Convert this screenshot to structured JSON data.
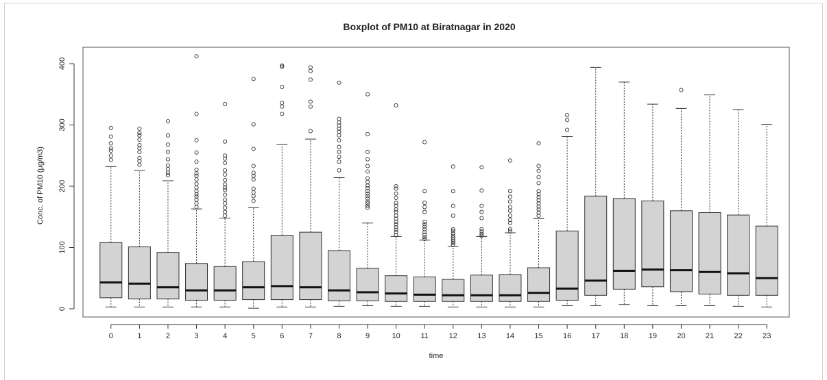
{
  "chart_data": {
    "type": "boxplot",
    "title": "Boxplot of PM10 at Biratnagar in 2020",
    "xlabel": "time",
    "ylabel": "Conc. of PM10 (μg/m3)",
    "ylim": [
      0,
      420
    ],
    "yticks": [
      0,
      100,
      200,
      300,
      400
    ],
    "categories": [
      "0",
      "1",
      "2",
      "3",
      "4",
      "5",
      "6",
      "7",
      "8",
      "9",
      "10",
      "11",
      "12",
      "13",
      "14",
      "15",
      "16",
      "17",
      "18",
      "19",
      "20",
      "21",
      "22",
      "23"
    ],
    "box_color": "#d3d3d3",
    "boxes": [
      {
        "x": "0",
        "whisker_low": 3,
        "q1": 18,
        "median": 43,
        "q3": 108,
        "whisker_high": 232,
        "outliers": [
          243,
          250,
          258,
          262,
          270,
          281,
          295
        ]
      },
      {
        "x": "1",
        "whisker_low": 3,
        "q1": 16,
        "median": 41,
        "q3": 101,
        "whisker_high": 226,
        "outliers": [
          235,
          241,
          246,
          256,
          262,
          267,
          276,
          283,
          287,
          294
        ]
      },
      {
        "x": "2",
        "whisker_low": 3,
        "q1": 16,
        "median": 35,
        "q3": 92,
        "whisker_high": 209,
        "outliers": [
          218,
          222,
          228,
          234,
          244,
          256,
          268,
          283,
          306
        ]
      },
      {
        "x": "3",
        "whisker_low": 3,
        "q1": 14,
        "median": 30,
        "q3": 74,
        "whisker_high": 163,
        "outliers": [
          166,
          172,
          178,
          183,
          187,
          192,
          198,
          204,
          211,
          217,
          221,
          227,
          240,
          255,
          275,
          318,
          412
        ]
      },
      {
        "x": "4",
        "whisker_low": 3,
        "q1": 14,
        "median": 30,
        "q3": 69,
        "whisker_high": 148,
        "outliers": [
          152,
          158,
          165,
          172,
          178,
          186,
          194,
          198,
          203,
          210,
          219,
          226,
          238,
          245,
          250,
          273,
          334
        ]
      },
      {
        "x": "5",
        "whisker_low": 1,
        "q1": 15,
        "median": 35,
        "q3": 77,
        "whisker_high": 165,
        "outliers": [
          176,
          184,
          190,
          196,
          211,
          217,
          222,
          233,
          261,
          301,
          375
        ]
      },
      {
        "x": "6",
        "whisker_low": 3,
        "q1": 15,
        "median": 37,
        "q3": 120,
        "whisker_high": 268,
        "outliers": [
          318,
          330,
          336,
          362,
          395,
          397
        ]
      },
      {
        "x": "7",
        "whisker_low": 3,
        "q1": 15,
        "median": 35,
        "q3": 125,
        "whisker_high": 277,
        "outliers": [
          290,
          330,
          338,
          374,
          388,
          394
        ]
      },
      {
        "x": "8",
        "whisker_low": 4,
        "q1": 13,
        "median": 30,
        "q3": 95,
        "whisker_high": 214,
        "outliers": [
          226,
          240,
          248,
          256,
          264,
          275,
          283,
          289,
          294,
          299,
          304,
          310,
          369
        ]
      },
      {
        "x": "9",
        "whisker_low": 5,
        "q1": 13,
        "median": 27,
        "q3": 66,
        "whisker_high": 140,
        "outliers": [
          165,
          168,
          172,
          175,
          180,
          184,
          188,
          192,
          197,
          201,
          207,
          213,
          224,
          233,
          244,
          256,
          285,
          350
        ]
      },
      {
        "x": "10",
        "whisker_low": 4,
        "q1": 12,
        "median": 25,
        "q3": 54,
        "whisker_high": 118,
        "outliers": [
          120,
          125,
          129,
          133,
          138,
          142,
          147,
          152,
          158,
          162,
          168,
          173,
          181,
          188,
          196,
          200,
          332
        ]
      },
      {
        "x": "11",
        "whisker_low": 4,
        "q1": 12,
        "median": 23,
        "q3": 52,
        "whisker_high": 112,
        "outliers": [
          114,
          117,
          121,
          125,
          130,
          134,
          138,
          142,
          158,
          166,
          173,
          192,
          272
        ]
      },
      {
        "x": "12",
        "whisker_low": 3,
        "q1": 12,
        "median": 22,
        "q3": 48,
        "whisker_high": 102,
        "outliers": [
          104,
          107,
          110,
          113,
          116,
          119,
          123,
          127,
          130,
          152,
          168,
          192,
          232
        ]
      },
      {
        "x": "13",
        "whisker_low": 3,
        "q1": 12,
        "median": 22,
        "q3": 55,
        "whisker_high": 118,
        "outliers": [
          119,
          122,
          126,
          130,
          148,
          158,
          168,
          193,
          231
        ]
      },
      {
        "x": "14",
        "whisker_low": 3,
        "q1": 12,
        "median": 22,
        "q3": 56,
        "whisker_high": 124,
        "outliers": [
          126,
          130,
          140,
          145,
          152,
          160,
          166,
          175,
          183,
          192,
          242
        ]
      },
      {
        "x": "15",
        "whisker_low": 3,
        "q1": 12,
        "median": 26,
        "q3": 67,
        "whisker_high": 147,
        "outliers": [
          152,
          157,
          162,
          167,
          172,
          177,
          182,
          187,
          192,
          205,
          215,
          225,
          233,
          270
        ]
      },
      {
        "x": "16",
        "whisker_low": 5,
        "q1": 14,
        "median": 33,
        "q3": 127,
        "whisker_high": 281,
        "outliers": [
          292,
          308,
          316
        ]
      },
      {
        "x": "17",
        "whisker_low": 5,
        "q1": 22,
        "median": 46,
        "q3": 184,
        "whisker_high": 394,
        "outliers": []
      },
      {
        "x": "18",
        "whisker_low": 7,
        "q1": 32,
        "median": 62,
        "q3": 180,
        "whisker_high": 370,
        "outliers": []
      },
      {
        "x": "19",
        "whisker_low": 5,
        "q1": 36,
        "median": 64,
        "q3": 176,
        "whisker_high": 334,
        "outliers": []
      },
      {
        "x": "20",
        "whisker_low": 5,
        "q1": 28,
        "median": 63,
        "q3": 160,
        "whisker_high": 327,
        "outliers": [
          357
        ]
      },
      {
        "x": "21",
        "whisker_low": 5,
        "q1": 24,
        "median": 60,
        "q3": 157,
        "whisker_high": 349,
        "outliers": []
      },
      {
        "x": "22",
        "whisker_low": 4,
        "q1": 22,
        "median": 58,
        "q3": 153,
        "whisker_high": 325,
        "outliers": []
      },
      {
        "x": "23",
        "whisker_low": 3,
        "q1": 22,
        "median": 50,
        "q3": 135,
        "whisker_high": 301,
        "outliers": []
      }
    ]
  }
}
